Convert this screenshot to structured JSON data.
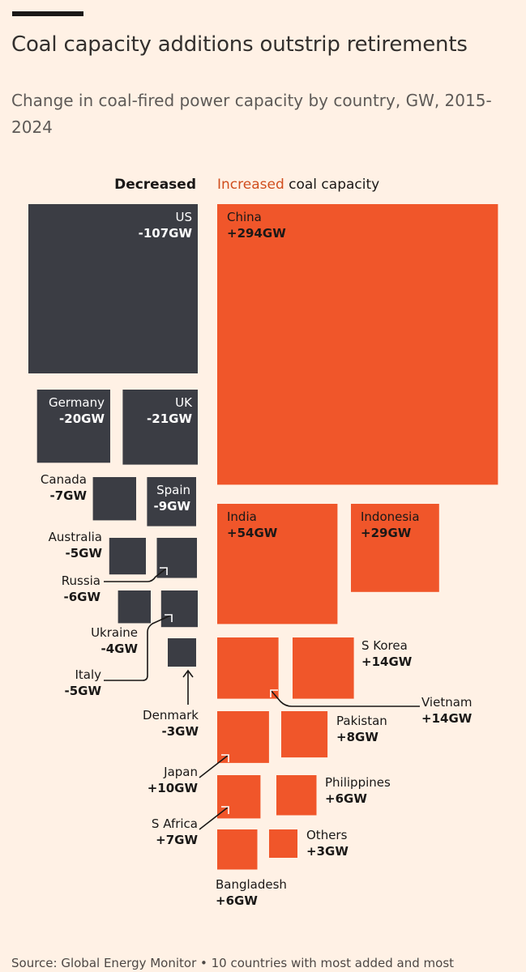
{
  "header": {
    "title": "Coal capacity additions outstrip retirements",
    "subtitle": "Change in coal-fired power capacity by country, GW, 2015-2024"
  },
  "legend": {
    "decreased_label": "Decreased",
    "increased_label": "Increased",
    "increased_suffix": " coal capacity"
  },
  "colors": {
    "decreased": "#3B3D44",
    "increased": "#F0562A",
    "background": "#FFF1E5",
    "increased_text": "#D04E1E"
  },
  "chart_data": {
    "type": "proportional-squares",
    "unit": "GW",
    "series": [
      {
        "name": "Decreased",
        "points": [
          {
            "country": "US",
            "value": -107,
            "label": "-107GW"
          },
          {
            "country": "UK",
            "value": -21,
            "label": "-21GW"
          },
          {
            "country": "Germany",
            "value": -20,
            "label": "-20GW"
          },
          {
            "country": "Spain",
            "value": -9,
            "label": "-9GW"
          },
          {
            "country": "Canada",
            "value": -7,
            "label": "-7GW"
          },
          {
            "country": "Russia",
            "value": -6,
            "label": "-6GW"
          },
          {
            "country": "Australia",
            "value": -5,
            "label": "-5GW"
          },
          {
            "country": "Italy",
            "value": -5,
            "label": "-5GW"
          },
          {
            "country": "Ukraine",
            "value": -4,
            "label": "-4GW"
          },
          {
            "country": "Denmark",
            "value": -3,
            "label": "-3GW"
          }
        ]
      },
      {
        "name": "Increased",
        "points": [
          {
            "country": "China",
            "value": 294,
            "label": "+294GW"
          },
          {
            "country": "India",
            "value": 54,
            "label": "+54GW"
          },
          {
            "country": "Indonesia",
            "value": 29,
            "label": "+29GW"
          },
          {
            "country": "S Korea",
            "value": 14,
            "label": "+14GW"
          },
          {
            "country": "Vietnam",
            "value": 14,
            "label": "+14GW"
          },
          {
            "country": "Japan",
            "value": 10,
            "label": "+10GW"
          },
          {
            "country": "Pakistan",
            "value": 8,
            "label": "+8GW"
          },
          {
            "country": "S Africa",
            "value": 7,
            "label": "+7GW"
          },
          {
            "country": "Philippines",
            "value": 6,
            "label": "+6GW"
          },
          {
            "country": "Bangladesh",
            "value": 6,
            "label": "+6GW"
          },
          {
            "country": "Others",
            "value": 3,
            "label": "+3GW"
          }
        ]
      }
    ]
  },
  "footer": {
    "source": "Source: Global Energy Monitor • 10 countries with most added and most"
  }
}
